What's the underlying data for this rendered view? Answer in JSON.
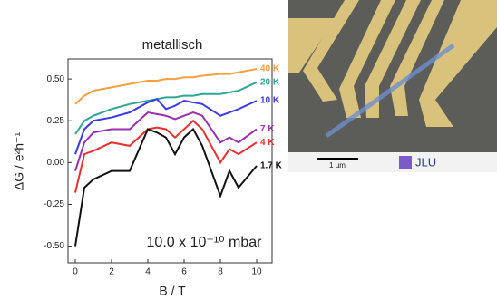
{
  "chart_data": {
    "type": "line",
    "title": "metallisch",
    "y_label": "ΔG / e²h⁻¹",
    "x_label": "B / T",
    "annotation": "10.0 x 10⁻¹⁰ mbar",
    "x": [
      0,
      0.5,
      1,
      2,
      3,
      4,
      4.5,
      5,
      5.5,
      6,
      6.5,
      7,
      8,
      8.5,
      9,
      10
    ],
    "series": [
      {
        "name": "40 K",
        "color": "#f5a03c",
        "values": [
          0.35,
          0.4,
          0.43,
          0.45,
          0.47,
          0.49,
          0.49,
          0.5,
          0.5,
          0.51,
          0.51,
          0.52,
          0.53,
          0.53,
          0.54,
          0.56
        ]
      },
      {
        "name": "20 K",
        "color": "#2fa597",
        "values": [
          0.17,
          0.25,
          0.28,
          0.32,
          0.35,
          0.37,
          0.38,
          0.39,
          0.39,
          0.4,
          0.4,
          0.41,
          0.41,
          0.42,
          0.43,
          0.48
        ]
      },
      {
        "name": "10 K",
        "color": "#3b3be6",
        "values": [
          0.05,
          0.2,
          0.25,
          0.27,
          0.3,
          0.36,
          0.38,
          0.32,
          0.34,
          0.37,
          0.36,
          0.35,
          0.28,
          0.3,
          0.32,
          0.37
        ]
      },
      {
        "name": "7 K",
        "color": "#9a2fb0",
        "values": [
          -0.05,
          0.12,
          0.18,
          0.2,
          0.2,
          0.3,
          0.29,
          0.28,
          0.26,
          0.28,
          0.3,
          0.28,
          0.12,
          0.15,
          0.12,
          0.2
        ]
      },
      {
        "name": "4 K",
        "color": "#e8302e",
        "values": [
          -0.18,
          0.05,
          0.07,
          0.12,
          0.1,
          0.2,
          0.21,
          0.2,
          0.15,
          0.2,
          0.25,
          0.2,
          0.0,
          0.08,
          0.05,
          0.12
        ]
      },
      {
        "name": "1.7 K",
        "color": "#111111",
        "values": [
          -0.5,
          -0.15,
          -0.1,
          -0.05,
          -0.05,
          0.2,
          0.18,
          0.15,
          0.05,
          0.15,
          0.2,
          0.1,
          -0.2,
          -0.05,
          -0.15,
          -0.02
        ]
      }
    ],
    "xlim": [
      -0.4,
      10.85
    ],
    "ylim": [
      -0.6,
      0.62
    ],
    "xticks": [
      0,
      2,
      4,
      6,
      8,
      10
    ],
    "yticks": [
      {
        "value": -0.5,
        "label": "-0.50"
      },
      {
        "value": -0.25,
        "label": "-0.25"
      },
      {
        "value": 0,
        "label": "0.00"
      },
      {
        "value": 0.25,
        "label": "0.25"
      },
      {
        "value": 0.5,
        "label": "0.50"
      }
    ]
  },
  "image": {
    "scale_bar": "1 µm",
    "logo": "JLU"
  }
}
